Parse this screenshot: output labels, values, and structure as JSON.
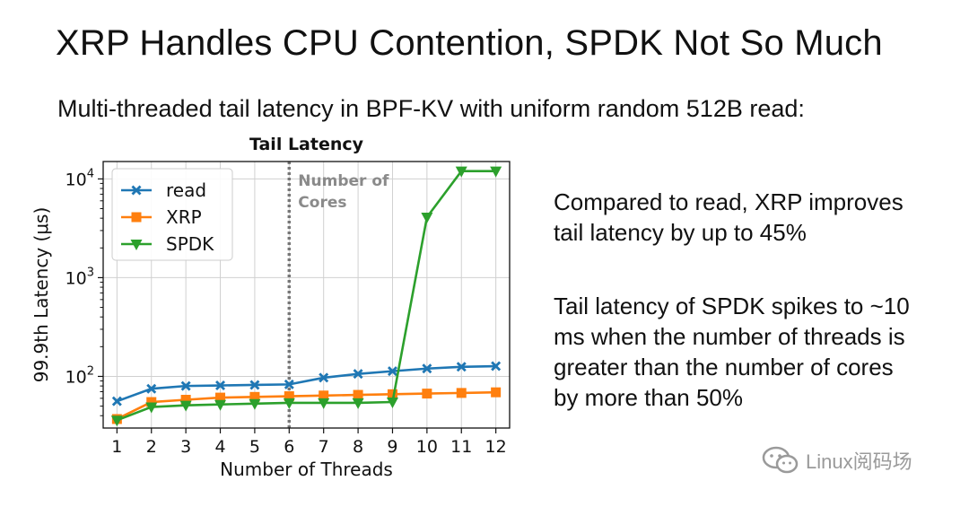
{
  "slide": {
    "title": "XRP Handles CPU Contention, SPDK Not So Much",
    "subtitle": "Multi-threaded tail latency in BPF-KV with uniform random 512B read:"
  },
  "chart_data": {
    "type": "line",
    "title": "Tail Latency",
    "xlabel": "Number of Threads",
    "ylabel": "99.9th Latency (μs)",
    "yscale": "log",
    "ylim": [
      30,
      15000
    ],
    "xlim": [
      0.6,
      12.4
    ],
    "x": [
      1,
      2,
      3,
      4,
      5,
      6,
      7,
      8,
      9,
      10,
      11,
      12
    ],
    "x_ticks": [
      "1",
      "2",
      "3",
      "4",
      "5",
      "6",
      "7",
      "8",
      "9",
      "10",
      "11",
      "12"
    ],
    "y_ticks": [
      {
        "base": "10",
        "exp": "2",
        "value": 100
      },
      {
        "base": "10",
        "exp": "3",
        "value": 1000
      },
      {
        "base": "10",
        "exp": "4",
        "value": 10000
      }
    ],
    "grid": true,
    "legend_position": "top-left",
    "series": [
      {
        "name": "read",
        "color": "#1f77b4",
        "marker": "x",
        "values": [
          56,
          75,
          80,
          81,
          82,
          83,
          97,
          106,
          113,
          120,
          125,
          127
        ]
      },
      {
        "name": "XRP",
        "color": "#ff7f0e",
        "marker": "square",
        "values": [
          37,
          55,
          58,
          61,
          62,
          63,
          64,
          65,
          66,
          67,
          68,
          69
        ]
      },
      {
        "name": "SPDK",
        "color": "#2ca02c",
        "marker": "triangle-down",
        "values": [
          36,
          49,
          51,
          52,
          53,
          54,
          54,
          54,
          55,
          4100,
          12000,
          12000
        ]
      }
    ],
    "vline": {
      "x": 6,
      "label_line1": "Number of",
      "label_line2": "Cores",
      "color": "#777777"
    }
  },
  "notes": [
    {
      "lines": [
        "Compared to read, XRP improves",
        "tail latency by up to 45%"
      ]
    },
    {
      "lines": [
        "Tail latency of SPDK spikes to ~10",
        "ms when the number of threads is",
        "greater than the number of cores",
        "by more than 50%"
      ]
    }
  ],
  "watermark": {
    "text": "Linux阅码场",
    "icon": "wechat-icon"
  }
}
